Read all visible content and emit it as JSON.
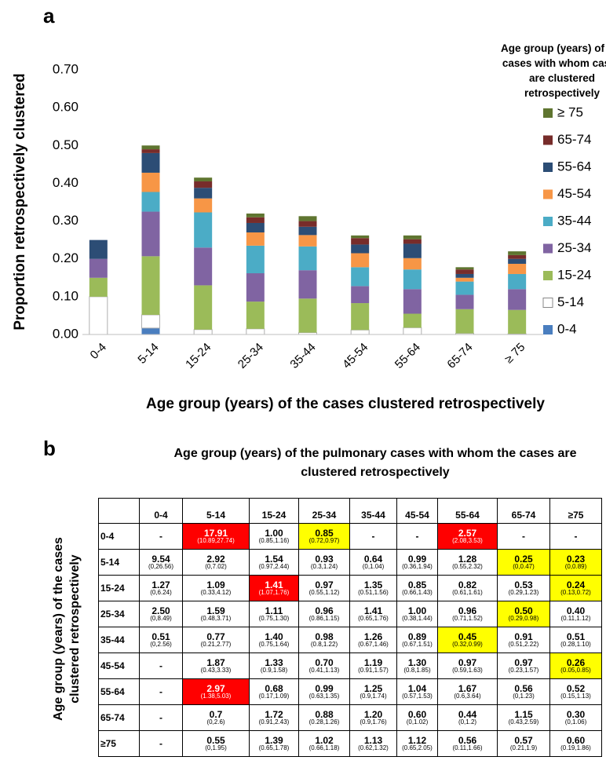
{
  "panel_labels": [
    "a",
    "b"
  ],
  "chart_data": {
    "type": "stacked_bar",
    "y_label": "Proportion retrospectively clustered",
    "x_label": "Age group (years) of the cases clustered retrospectively",
    "legend_title": "Age group (years) of the cases with whom cases are clustered retrospectively",
    "legend": "right",
    "categories": [
      "0-4",
      "5-14",
      "15-24",
      "25-34",
      "35-44",
      "45-54",
      "55-64",
      "65-74",
      "≥ 75"
    ],
    "ylim": [
      0,
      0.7
    ],
    "yticks": [
      {
        "value": 0,
        "label": "0.00"
      },
      {
        "value": 0.1,
        "label": "0.10"
      },
      {
        "value": 0.2,
        "label": "0.20"
      },
      {
        "value": 0.3,
        "label": "0.30"
      },
      {
        "value": 0.4,
        "label": "0.40"
      },
      {
        "value": 0.5,
        "label": "0.50"
      },
      {
        "value": 0.6,
        "label": "0.60"
      },
      {
        "value": 0.7,
        "label": "0.70"
      }
    ],
    "series": [
      {
        "name": "0-4",
        "color": "#4a7ebf",
        "values": [
          0,
          0.017,
          0,
          0,
          0,
          0,
          0,
          0,
          0
        ]
      },
      {
        "name": "5-14",
        "color": "#ffffff",
        "values": [
          0.1,
          0.035,
          0.013,
          0.015,
          0.005,
          0.012,
          0.018,
          0.003,
          0.002
        ]
      },
      {
        "name": "15-24",
        "color": "#9bbb59",
        "values": [
          0.05,
          0.155,
          0.117,
          0.072,
          0.09,
          0.071,
          0.037,
          0.064,
          0.063
        ]
      },
      {
        "name": "25-34",
        "color": "#8064a2",
        "values": [
          0.05,
          0.118,
          0.1,
          0.075,
          0.075,
          0.045,
          0.065,
          0.038,
          0.055
        ]
      },
      {
        "name": "35-44",
        "color": "#4bacc6",
        "values": [
          0,
          0.052,
          0.093,
          0.073,
          0.063,
          0.05,
          0.052,
          0.035,
          0.04
        ]
      },
      {
        "name": "45-54",
        "color": "#f79646",
        "values": [
          0,
          0.051,
          0.037,
          0.035,
          0.03,
          0.037,
          0.03,
          0.01,
          0.027
        ]
      },
      {
        "name": "55-64",
        "color": "#2c4d75",
        "values": [
          0.05,
          0.052,
          0.028,
          0.025,
          0.022,
          0.023,
          0.038,
          0.01,
          0.013
        ]
      },
      {
        "name": "65-74",
        "color": "#772c2a",
        "values": [
          0,
          0.01,
          0.017,
          0.015,
          0.015,
          0.017,
          0.012,
          0.012,
          0.01
        ]
      },
      {
        "name": "≥ 75",
        "color": "#5f7530",
        "values": [
          0,
          0.01,
          0.01,
          0.01,
          0.013,
          0.007,
          0.01,
          0.006,
          0.01
        ]
      }
    ]
  },
  "table": {
    "title": "Age group (years) of the pulmonary cases with whom the cases are clustered retrospectively",
    "row_axis_title": "Age group (years) of the cases clustered retrospectively",
    "columns": [
      "0-4",
      "5-14",
      "15-24",
      "25-34",
      "35-44",
      "45-54",
      "55-64",
      "65-74",
      "≥75"
    ],
    "rows": [
      {
        "label": "0-4",
        "cells": [
          {
            "value": "-"
          },
          {
            "value": "17.91",
            "ci": "(10.89,27.74)",
            "highlight": "#ff0000"
          },
          {
            "value": "1.00",
            "ci": "(0.85,1.16)"
          },
          {
            "value": "0.85",
            "ci": "(0.72,0.97)",
            "highlight": "#ffff00"
          },
          {
            "value": "-"
          },
          {
            "value": "-"
          },
          {
            "value": "2.57",
            "ci": "(2.08,3.53)",
            "highlight": "#ff0000"
          },
          {
            "value": "-"
          },
          {
            "value": "-"
          }
        ]
      },
      {
        "label": "5-14",
        "cells": [
          {
            "value": "9.54",
            "ci": "(0,26.56)"
          },
          {
            "value": "2.92",
            "ci": "(0,7.02)"
          },
          {
            "value": "1.54",
            "ci": "(0.97,2.44)"
          },
          {
            "value": "0.93",
            "ci": "(0.3,1.24)"
          },
          {
            "value": "0.64",
            "ci": "(0,1.04)"
          },
          {
            "value": "0.99",
            "ci": "(0.36,1.94)"
          },
          {
            "value": "1.28",
            "ci": "(0.55,2.32)"
          },
          {
            "value": "0.25",
            "ci": "(0,0.47)",
            "highlight": "#ffff00"
          },
          {
            "value": "0.23",
            "ci": "(0,0.89)",
            "highlight": "#ffff00"
          }
        ]
      },
      {
        "label": "15-24",
        "cells": [
          {
            "value": "1.27",
            "ci": "(0,6.24)"
          },
          {
            "value": "1.09",
            "ci": "(0.33,4.12)"
          },
          {
            "value": "1.41",
            "ci": "(1.07,1.76)",
            "highlight": "#ff0000"
          },
          {
            "value": "0.97",
            "ci": "(0.55,1.12)"
          },
          {
            "value": "1.35",
            "ci": "(0.51,1.56)"
          },
          {
            "value": "0.85",
            "ci": "(0.66,1.43)"
          },
          {
            "value": "0.82",
            "ci": "(0.61,1.61)"
          },
          {
            "value": "0.53",
            "ci": "(0.29,1.23)"
          },
          {
            "value": "0.24",
            "ci": "(0.13,0.72)",
            "highlight": "#ffff00"
          }
        ]
      },
      {
        "label": "25-34",
        "cells": [
          {
            "value": "2.50",
            "ci": "(0,8.49)"
          },
          {
            "value": "1.59",
            "ci": "(0.48,3.71)"
          },
          {
            "value": "1.11",
            "ci": "(0.75,1.30)"
          },
          {
            "value": "0.96",
            "ci": "(0.86,1.15)"
          },
          {
            "value": "1.41",
            "ci": "(0.65,1.76)"
          },
          {
            "value": "1.00",
            "ci": "(0.38,1.44)"
          },
          {
            "value": "0.96",
            "ci": "(0.71,1.52)"
          },
          {
            "value": "0.50",
            "ci": "(0.29,0.98)",
            "highlight": "#ffff00"
          },
          {
            "value": "0.40",
            "ci": "(0.11,1.12)"
          }
        ]
      },
      {
        "label": "35-44",
        "cells": [
          {
            "value": "0.51",
            "ci": "(0,2.56)"
          },
          {
            "value": "0.77",
            "ci": "(0.21,2.77)"
          },
          {
            "value": "1.40",
            "ci": "(0.75,1.64)"
          },
          {
            "value": "0.98",
            "ci": "(0.8,1.22)"
          },
          {
            "value": "1.26",
            "ci": "(0.67,1.46)"
          },
          {
            "value": "0.89",
            "ci": "(0.67,1.51)"
          },
          {
            "value": "0.45",
            "ci": "(0.32,0.99)",
            "highlight": "#ffff00"
          },
          {
            "value": "0.91",
            "ci": "(0.51,2.22)"
          },
          {
            "value": "0.51",
            "ci": "(0.28,1.10)"
          }
        ]
      },
      {
        "label": "45-54",
        "cells": [
          {
            "value": "-"
          },
          {
            "value": "1.87",
            "ci": "(0.43,3.33)"
          },
          {
            "value": "1.33",
            "ci": "(0.9,1.58)"
          },
          {
            "value": "0.70",
            "ci": "(0.41,1.13)"
          },
          {
            "value": "1.19",
            "ci": "(0.91,1.57)"
          },
          {
            "value": "1.30",
            "ci": "(0.8,1.85)"
          },
          {
            "value": "0.97",
            "ci": "(0.59,1.63)"
          },
          {
            "value": "0.97",
            "ci": "(0.23,1.57)"
          },
          {
            "value": "0.26",
            "ci": "(0.05,0.85)",
            "highlight": "#ffff00"
          }
        ]
      },
      {
        "label": "55-64",
        "cells": [
          {
            "value": "-"
          },
          {
            "value": "2.97",
            "ci": "(1.38,5.03)",
            "highlight": "#ff0000"
          },
          {
            "value": "0.68",
            "ci": "(0.17,1.09)"
          },
          {
            "value": "0.99",
            "ci": "(0.63,1.35)"
          },
          {
            "value": "1.25",
            "ci": "(0.9,1.74)"
          },
          {
            "value": "1.04",
            "ci": "(0.57,1.53)"
          },
          {
            "value": "1.67",
            "ci": "(0.6,3.64)"
          },
          {
            "value": "0.56",
            "ci": "(0,1.23)"
          },
          {
            "value": "0.52",
            "ci": "(0.15,1.13)"
          }
        ]
      },
      {
        "label": "65-74",
        "cells": [
          {
            "value": "-"
          },
          {
            "value": "0.7",
            "ci": "(0,2.6)"
          },
          {
            "value": "1.72",
            "ci": "(0.91,2.43)"
          },
          {
            "value": "0.88",
            "ci": "(0.28,1.26)"
          },
          {
            "value": "1.20",
            "ci": "(0.9,1.76)"
          },
          {
            "value": "0.60",
            "ci": "(0,1.02)"
          },
          {
            "value": "0.44",
            "ci": "(0,1.2)"
          },
          {
            "value": "1.15",
            "ci": "(0.43,2.59)"
          },
          {
            "value": "0.30",
            "ci": "(0,1.06)"
          }
        ]
      },
      {
        "label": "≥75",
        "cells": [
          {
            "value": "-"
          },
          {
            "value": "0.55",
            "ci": "(0,1.95)"
          },
          {
            "value": "1.39",
            "ci": "(0.65,1.78)"
          },
          {
            "value": "1.02",
            "ci": "(0.66,1.18)"
          },
          {
            "value": "1.13",
            "ci": "(0.62,1.32)"
          },
          {
            "value": "1.12",
            "ci": "(0.65,2.05)"
          },
          {
            "value": "0.56",
            "ci": "(0.11,1.66)"
          },
          {
            "value": "0.57",
            "ci": "(0.21,1.9)"
          },
          {
            "value": "0.60",
            "ci": "(0.19,1.86)"
          }
        ]
      }
    ]
  }
}
